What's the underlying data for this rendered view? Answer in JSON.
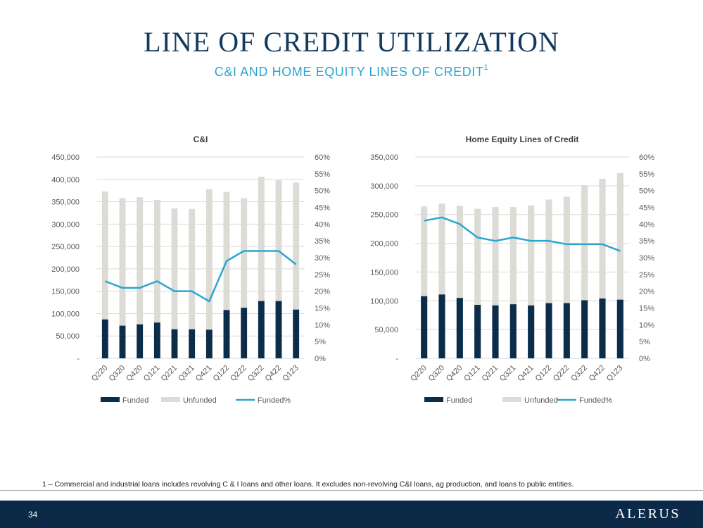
{
  "page": {
    "title": "LINE OF CREDIT UTILIZATION",
    "subtitle": "C&I AND HOME EQUITY LINES OF CREDIT",
    "subtitle_sup": "1",
    "footnote": "1 – Commercial and industrial loans includes revolving C & I loans and other loans. It excludes non-revolving C&I loans, ag production, and loans to public entities.",
    "page_number": "34",
    "logo": "ALERUS"
  },
  "colors": {
    "funded": "#0b2d4a",
    "unfunded": "#dcdbd6",
    "funded_pct": "#2aa6d1",
    "grid": "#d9d9d9",
    "text": "#595959"
  },
  "chart_data": [
    {
      "type": "bar",
      "title": "C&I",
      "categories": [
        "Q220",
        "Q320",
        "Q420",
        "Q121",
        "Q221",
        "Q321",
        "Q421",
        "Q122",
        "Q222",
        "Q322",
        "Q422",
        "Q123"
      ],
      "series": [
        {
          "name": "Funded",
          "kind": "bar",
          "stack": "main",
          "values": [
            87000,
            73000,
            76000,
            80000,
            65000,
            65000,
            64000,
            108000,
            113000,
            128000,
            128000,
            109000
          ]
        },
        {
          "name": "Unfunded",
          "kind": "bar",
          "stack": "main",
          "values": [
            286000,
            285000,
            284000,
            274000,
            270000,
            269000,
            314000,
            264000,
            245000,
            278000,
            270000,
            284000
          ]
        },
        {
          "name": "Funded%",
          "kind": "line",
          "axis": "right",
          "values": [
            23,
            21,
            21,
            23,
            20,
            20,
            17,
            29,
            32,
            32,
            32,
            28
          ]
        }
      ],
      "yleft": {
        "ylim": [
          0,
          450000
        ],
        "ticks": [
          "-",
          "50,000",
          "100,000",
          "150,000",
          "200,000",
          "250,000",
          "300,000",
          "350,000",
          "400,000",
          "450,000"
        ]
      },
      "yright": {
        "ylim": [
          0,
          60
        ],
        "ticks": [
          "0%",
          "5%",
          "10%",
          "15%",
          "20%",
          "25%",
          "30%",
          "35%",
          "40%",
          "45%",
          "50%",
          "55%",
          "60%"
        ]
      },
      "grid": true,
      "legend": "bottom"
    },
    {
      "type": "bar",
      "title": "Home Equity Lines of Credit",
      "categories": [
        "Q220",
        "Q320",
        "Q420",
        "Q121",
        "Q221",
        "Q321",
        "Q421",
        "Q122",
        "Q222",
        "Q322",
        "Q422",
        "Q123"
      ],
      "series": [
        {
          "name": "Funded",
          "kind": "bar",
          "stack": "main",
          "values": [
            108000,
            111000,
            105000,
            93000,
            92000,
            94000,
            92000,
            96000,
            96000,
            101000,
            104000,
            102000
          ]
        },
        {
          "name": "Unfunded",
          "kind": "bar",
          "stack": "main",
          "values": [
            156000,
            158000,
            160000,
            167000,
            171000,
            169000,
            174000,
            180000,
            185000,
            200000,
            208000,
            220000
          ]
        },
        {
          "name": "Funded%",
          "kind": "line",
          "axis": "right",
          "values": [
            41,
            42,
            40,
            36,
            35,
            36,
            35,
            35,
            34,
            34,
            34,
            32
          ]
        }
      ],
      "yleft": {
        "ylim": [
          0,
          350000
        ],
        "ticks": [
          "-",
          "50,000",
          "100,000",
          "150,000",
          "200,000",
          "250,000",
          "300,000",
          "350,000"
        ]
      },
      "yright": {
        "ylim": [
          0,
          60
        ],
        "ticks": [
          "0%",
          "5%",
          "10%",
          "15%",
          "20%",
          "25%",
          "30%",
          "35%",
          "40%",
          "45%",
          "50%",
          "55%",
          "60%"
        ]
      },
      "grid": true,
      "legend": "bottom"
    }
  ]
}
